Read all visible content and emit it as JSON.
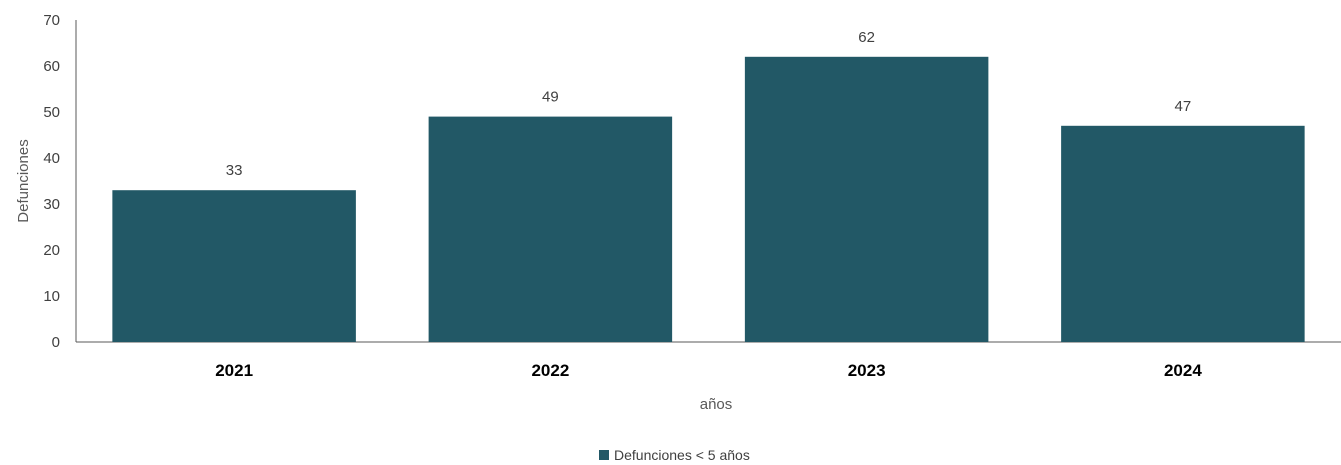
{
  "chart_data": {
    "type": "bar",
    "categories": [
      "2021",
      "2022",
      "2023",
      "2024"
    ],
    "series": [
      {
        "name": "Defunciones < 5 años",
        "values": [
          33,
          49,
          62,
          47
        ],
        "color": "#225866"
      }
    ],
    "title": "",
    "xlabel": "años",
    "ylabel": "Defunciones",
    "ylim": [
      0,
      70
    ],
    "yticks": [
      0,
      10,
      20,
      30,
      40,
      50,
      60,
      70
    ],
    "grid": false,
    "data_labels": true,
    "legend_position": "bottom"
  }
}
